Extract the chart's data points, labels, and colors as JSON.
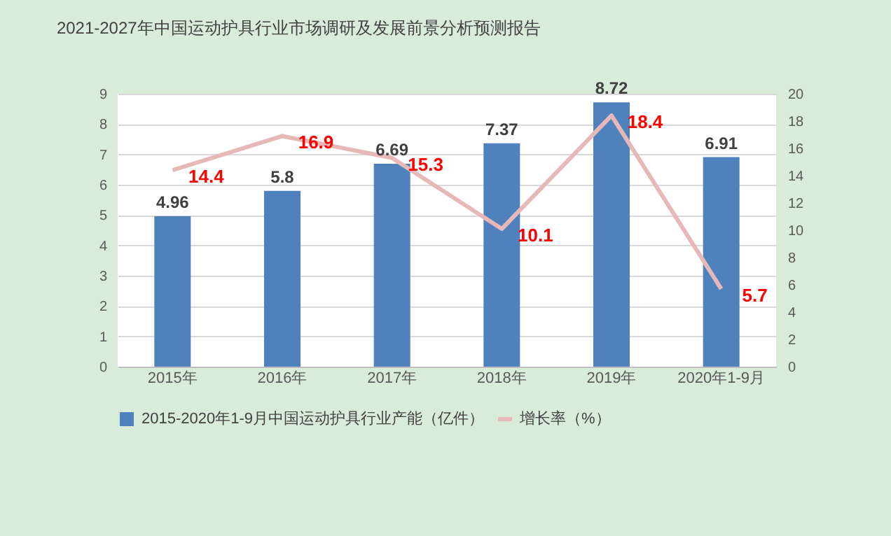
{
  "chart_data": {
    "type": "bar",
    "title": "2021-2027年中国运动护具行业市场调研及发展前景分析预测报告",
    "categories": [
      "2015年",
      "2016年",
      "2017年",
      "2018年",
      "2019年",
      "2020年1-9月"
    ],
    "series": [
      {
        "name": "2015-2020年1-9月中国运动护具行业产能（亿件）",
        "color": "#4f81bd",
        "values": [
          4.96,
          5.8,
          6.69,
          7.37,
          8.72,
          6.91
        ]
      },
      {
        "name": "增长率（%）",
        "type": "line",
        "axis": "y2",
        "color": "#e6b9b8",
        "values": [
          14.4,
          16.9,
          15.3,
          10.1,
          18.4,
          5.7
        ]
      }
    ],
    "ylim": [
      0,
      9
    ],
    "yticks": [
      0,
      1,
      2,
      3,
      4,
      5,
      6,
      7,
      8,
      9
    ],
    "y2lim": [
      0,
      20
    ],
    "y2ticks": [
      0,
      2,
      4,
      6,
      8,
      10,
      12,
      14,
      16,
      18,
      20
    ],
    "grid": "y",
    "legend": "bottom",
    "data_labels": true
  }
}
